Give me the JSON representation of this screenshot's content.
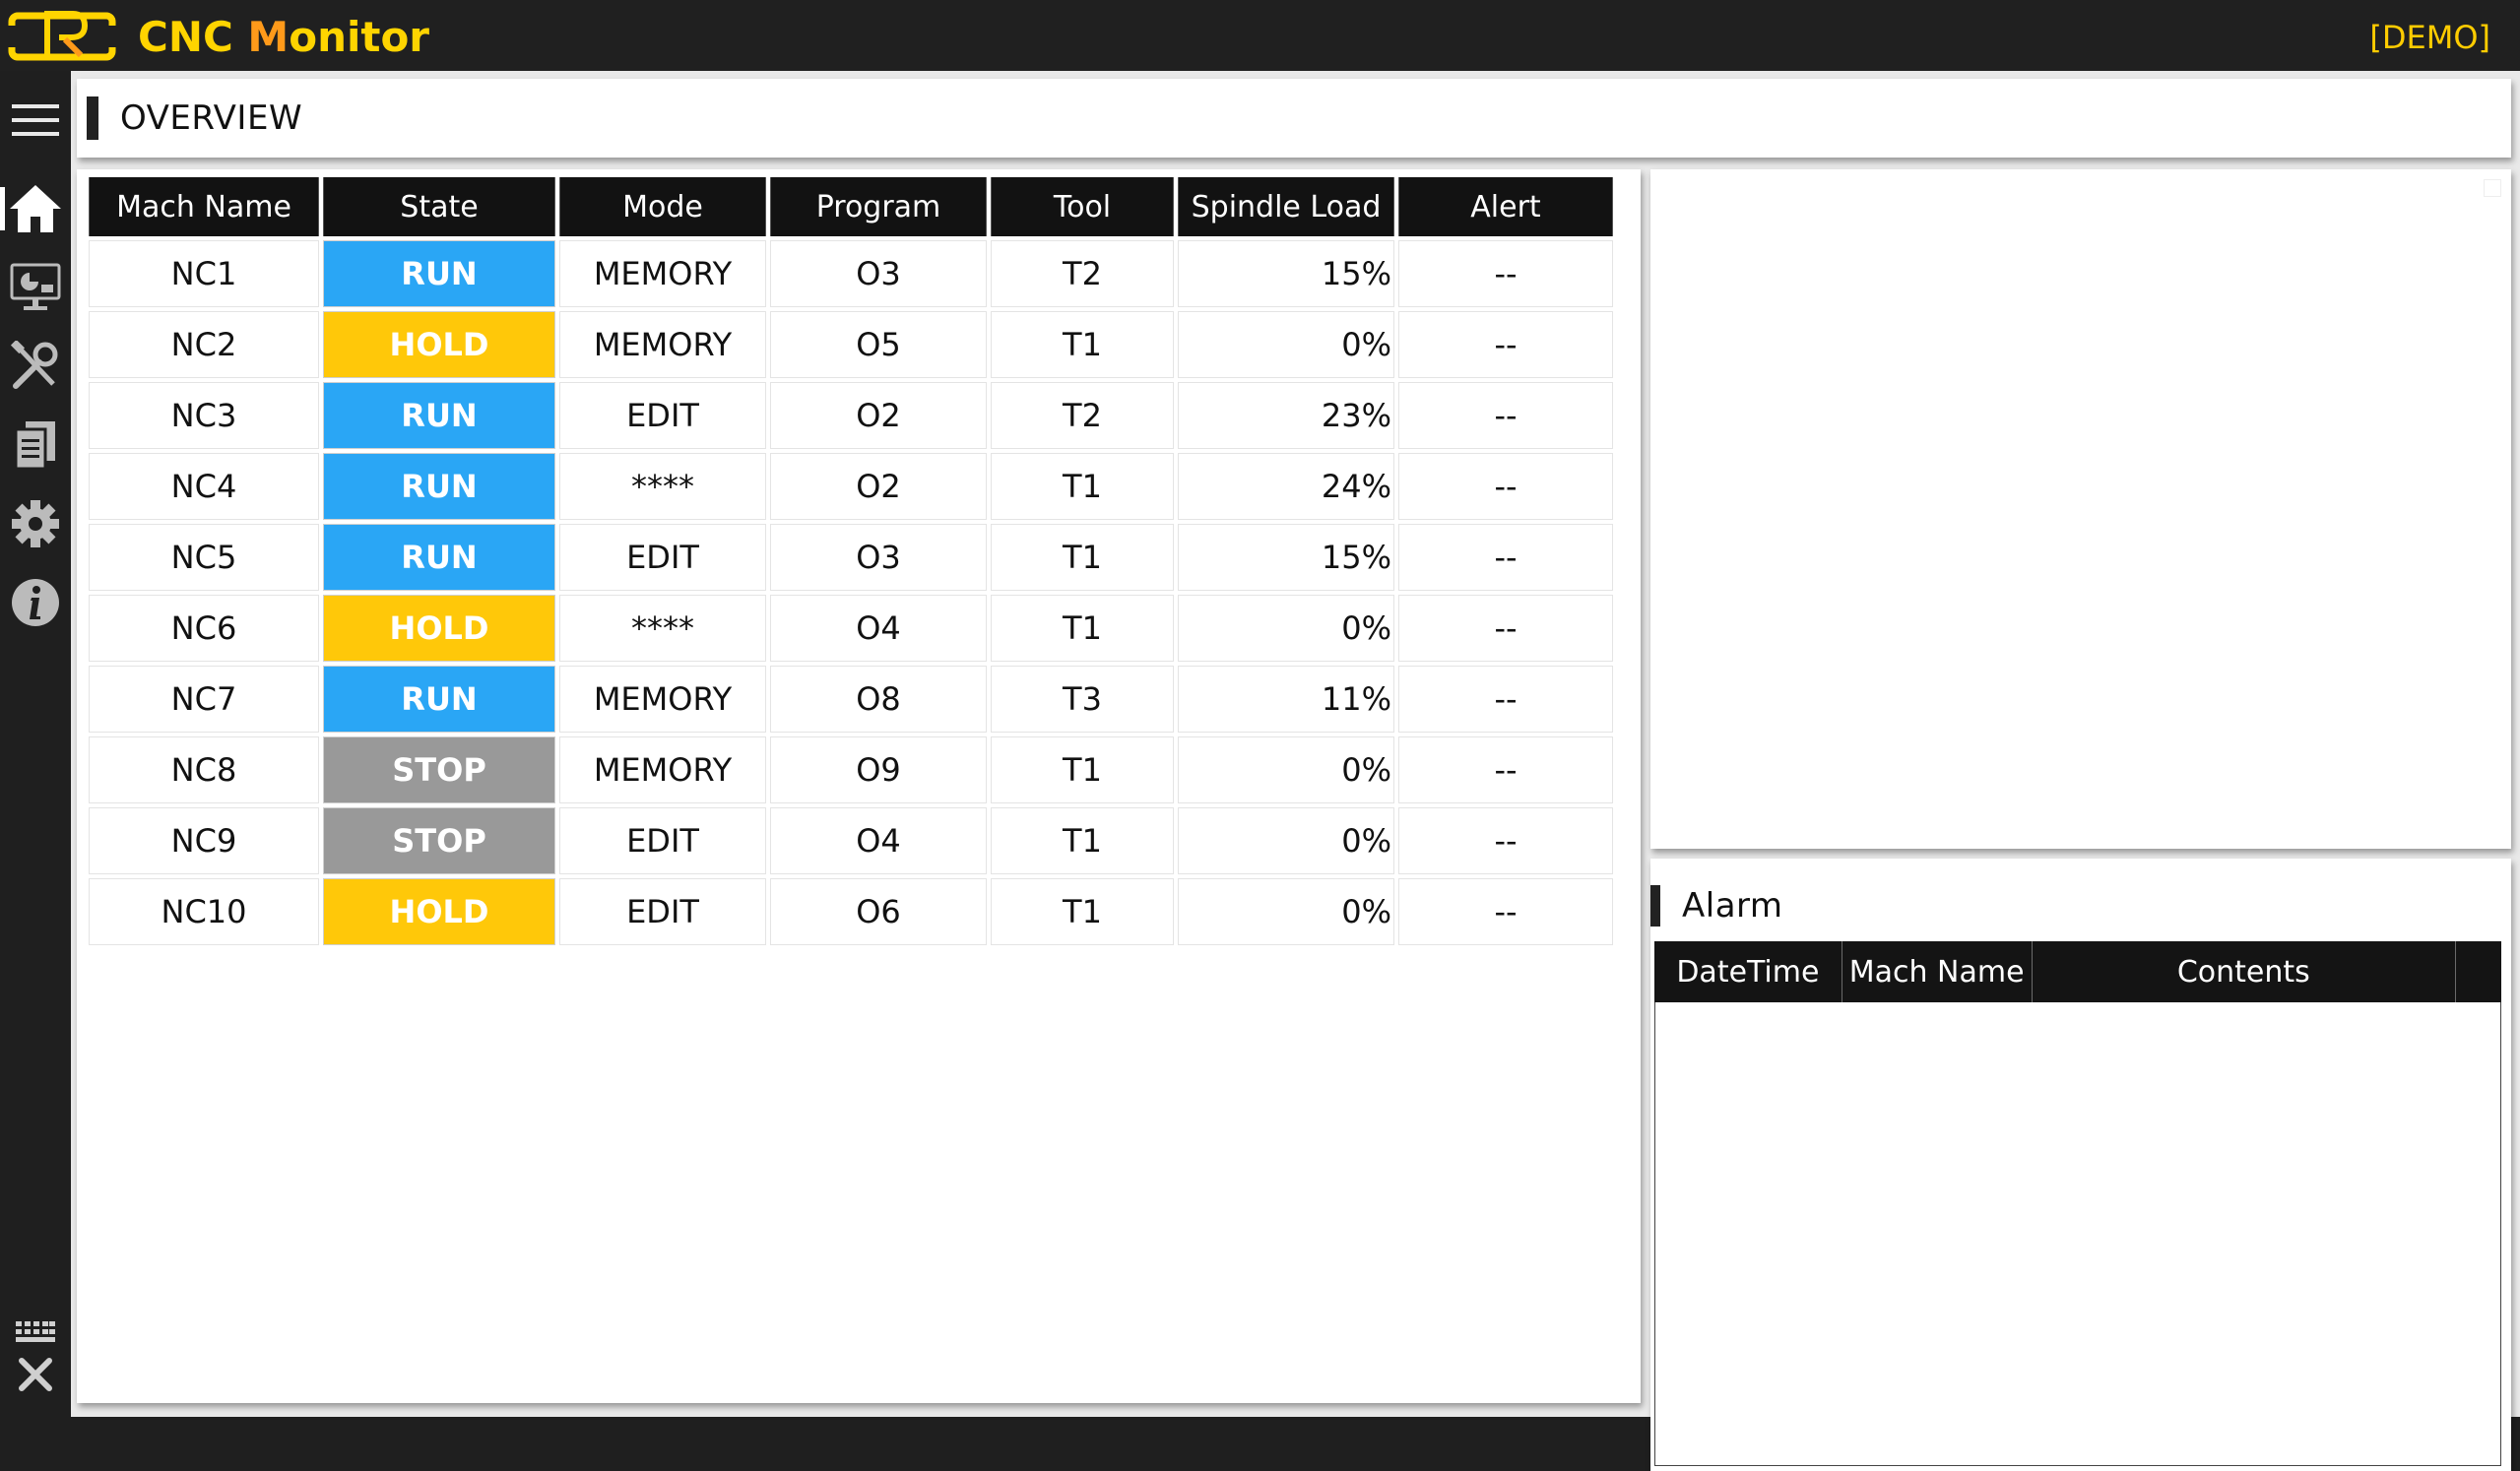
{
  "app": {
    "title_first": "CNC ",
    "title_accent": "M",
    "title_rest": "onitor",
    "mode_badge": "[DEMO]"
  },
  "colors": {
    "run": "#2aa6f5",
    "hold": "#ffc809",
    "stop": "#999999",
    "brand": "#ffd400",
    "accent": "#ff9a1a"
  },
  "sidebar": {
    "items": [
      {
        "name": "menu",
        "icon": "hamburger-menu-icon"
      },
      {
        "name": "overview",
        "icon": "home-icon",
        "active": true
      },
      {
        "name": "dashboard",
        "icon": "monitor-chart-icon"
      },
      {
        "name": "tools",
        "icon": "tools-icon"
      },
      {
        "name": "reports",
        "icon": "documents-icon"
      },
      {
        "name": "settings",
        "icon": "gear-icon"
      },
      {
        "name": "info",
        "icon": "info-icon"
      },
      {
        "name": "keyboard",
        "icon": "keyboard-icon"
      },
      {
        "name": "close",
        "icon": "close-icon"
      }
    ]
  },
  "overview": {
    "title": "OVERVIEW",
    "columns": [
      "Mach Name",
      "State",
      "Mode",
      "Program",
      "Tool",
      "Spindle Load",
      "Alert"
    ],
    "rows": [
      {
        "name": "NC1",
        "state": "RUN",
        "mode": "MEMORY",
        "program": "O3",
        "tool": "T2",
        "load": "15%",
        "alert": "--"
      },
      {
        "name": "NC2",
        "state": "HOLD",
        "mode": "MEMORY",
        "program": "O5",
        "tool": "T1",
        "load": "0%",
        "alert": "--"
      },
      {
        "name": "NC3",
        "state": "RUN",
        "mode": "EDIT",
        "program": "O2",
        "tool": "T2",
        "load": "23%",
        "alert": "--"
      },
      {
        "name": "NC4",
        "state": "RUN",
        "mode": "****",
        "program": "O2",
        "tool": "T1",
        "load": "24%",
        "alert": "--"
      },
      {
        "name": "NC5",
        "state": "RUN",
        "mode": "EDIT",
        "program": "O3",
        "tool": "T1",
        "load": "15%",
        "alert": "--"
      },
      {
        "name": "NC6",
        "state": "HOLD",
        "mode": "****",
        "program": "O4",
        "tool": "T1",
        "load": "0%",
        "alert": "--"
      },
      {
        "name": "NC7",
        "state": "RUN",
        "mode": "MEMORY",
        "program": "O8",
        "tool": "T3",
        "load": "11%",
        "alert": "--"
      },
      {
        "name": "NC8",
        "state": "STOP",
        "mode": "MEMORY",
        "program": "O9",
        "tool": "T1",
        "load": "0%",
        "alert": "--"
      },
      {
        "name": "NC9",
        "state": "STOP",
        "mode": "EDIT",
        "program": "O4",
        "tool": "T1",
        "load": "0%",
        "alert": "--"
      },
      {
        "name": "NC10",
        "state": "HOLD",
        "mode": "EDIT",
        "program": "O6",
        "tool": "T1",
        "load": "0%",
        "alert": "--"
      }
    ]
  },
  "alarm": {
    "title": "Alarm",
    "columns": [
      "DateTime",
      "Mach Name",
      "Contents"
    ],
    "rows": []
  }
}
